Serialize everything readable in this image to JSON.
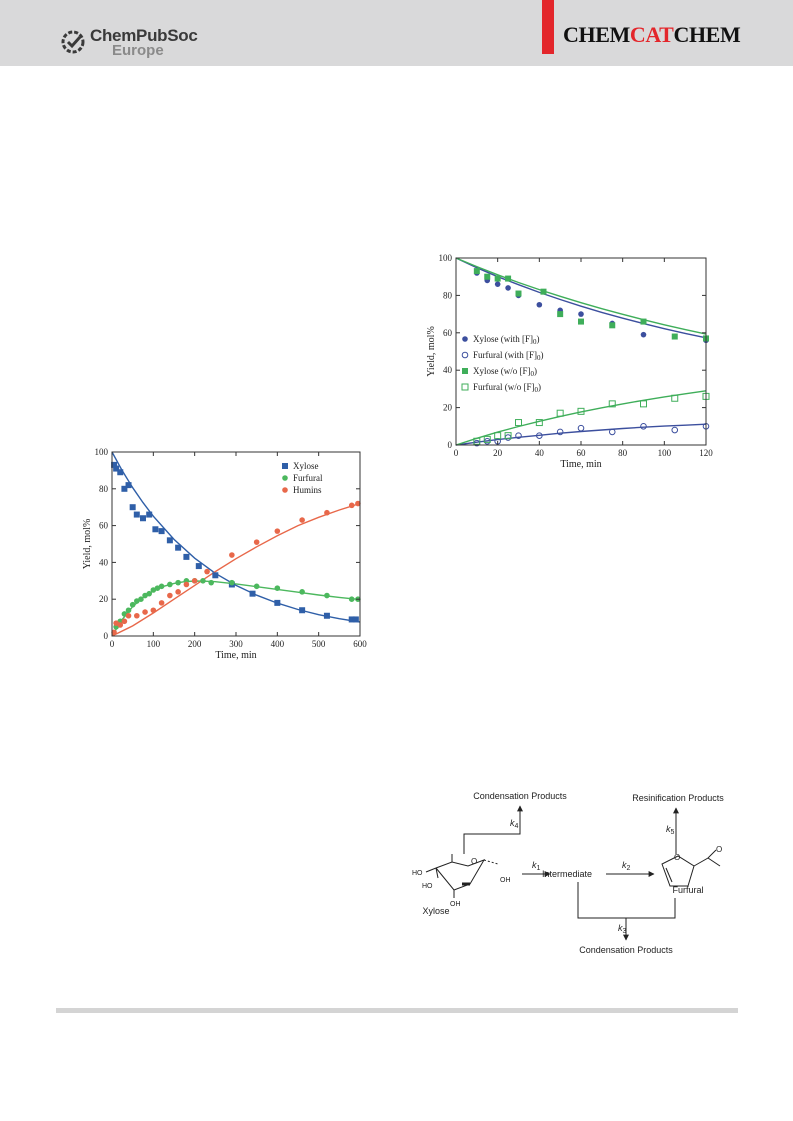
{
  "header": {
    "publisher_line1": "ChemPubSoc",
    "publisher_line2": "Europe",
    "journal_part1": "CHEM",
    "journal_part2": "CAT",
    "journal_part3": "CHEM"
  },
  "chart_data": [
    {
      "type": "scatter",
      "xlabel": "Time, min",
      "ylabel": "Yield, mol%",
      "xlim": [
        0,
        120
      ],
      "ylim": [
        0,
        100
      ],
      "xticks": [
        "0",
        "20",
        "40",
        "60",
        "80",
        "100",
        "120"
      ],
      "yticks": [
        "0",
        "20",
        "40",
        "60",
        "80",
        "100"
      ],
      "legend_placement": "center-left",
      "series": [
        {
          "name": "Xylose (with [F]0)",
          "legend_main": "Xylose (with [F]",
          "legend_sub": "0",
          "legend_tail": ")",
          "marker": "filled-circle",
          "color": "#3c4f9e",
          "x": [
            10,
            15,
            20,
            25,
            30,
            40,
            50,
            60,
            75,
            90,
            105,
            120
          ],
          "y": [
            92,
            88,
            86,
            84,
            80,
            75,
            72,
            70,
            65,
            59,
            58,
            56
          ]
        },
        {
          "name": "Furfural (with [F]0)",
          "legend_main": "Furfural (with [F]",
          "legend_sub": "0",
          "legend_tail": ")",
          "marker": "open-circle",
          "color": "#3c4f9e",
          "x": [
            10,
            15,
            20,
            25,
            30,
            40,
            50,
            60,
            75,
            90,
            105,
            120
          ],
          "y": [
            1,
            2,
            2,
            4,
            5,
            5,
            7,
            9,
            7,
            10,
            8,
            10
          ]
        },
        {
          "name": "Xylose (w/o [F]0)",
          "legend_main": "Xylose (w/o [F]",
          "legend_sub": "0",
          "legend_tail": ")",
          "marker": "filled-square",
          "color": "#3fae5a",
          "x": [
            10,
            15,
            20,
            25,
            30,
            42,
            50,
            60,
            75,
            90,
            105,
            120
          ],
          "y": [
            93,
            90,
            89,
            89,
            81,
            82,
            70,
            66,
            64,
            66,
            58,
            57
          ]
        },
        {
          "name": "Furfural (w/o [F]0)",
          "legend_main": "Furfural (w/o [F]",
          "legend_sub": "0",
          "legend_tail": ")",
          "marker": "open-square",
          "color": "#3fae5a",
          "x": [
            10,
            15,
            20,
            25,
            30,
            40,
            50,
            60,
            75,
            90,
            105,
            120
          ],
          "y": [
            2,
            3,
            5,
            5,
            12,
            12,
            17,
            18,
            22,
            22,
            25,
            26
          ]
        }
      ],
      "fits": [
        {
          "color": "#3c4f9e",
          "x": [
            0,
            10,
            20,
            30,
            40,
            50,
            60,
            70,
            80,
            90,
            100,
            110,
            120
          ],
          "y": [
            100,
            94.8,
            90,
            85.7,
            81.6,
            77.8,
            74.2,
            70.9,
            67.8,
            64.9,
            62.2,
            59.7,
            57.3
          ]
        },
        {
          "color": "#3c4f9e",
          "x": [
            0,
            10,
            20,
            30,
            40,
            50,
            60,
            70,
            80,
            90,
            100,
            110,
            120
          ],
          "y": [
            0,
            1.5,
            2.9,
            4.1,
            5.2,
            6.3,
            7.2,
            8,
            8.8,
            9.5,
            10.1,
            10.6,
            11.1
          ]
        },
        {
          "color": "#3fae5a",
          "x": [
            0,
            10,
            20,
            30,
            40,
            50,
            60,
            70,
            80,
            90,
            100,
            110,
            120
          ],
          "y": [
            100,
            95.4,
            91,
            86.9,
            83.1,
            79.5,
            76.1,
            72.9,
            69.9,
            67,
            64.3,
            61.7,
            59.3
          ]
        },
        {
          "color": "#3fae5a",
          "x": [
            0,
            10,
            20,
            30,
            40,
            50,
            60,
            70,
            80,
            90,
            100,
            110,
            120
          ],
          "y": [
            0,
            3.6,
            6.9,
            9.9,
            12.7,
            15.3,
            17.7,
            19.9,
            22,
            23.9,
            25.7,
            27.4,
            29
          ]
        }
      ]
    },
    {
      "type": "scatter",
      "xlabel": "Time, min",
      "ylabel": "Yield, mol%",
      "xlim": [
        0,
        600
      ],
      "ylim": [
        0,
        100
      ],
      "xticks": [
        "0",
        "100",
        "200",
        "300",
        "400",
        "500",
        "600"
      ],
      "yticks": [
        "0",
        "20",
        "40",
        "60",
        "80",
        "100"
      ],
      "legend_placement": "top-right",
      "series": [
        {
          "name": "Xylose",
          "legend_main": "Xylose",
          "marker": "filled-square",
          "color": "#2f5fa8",
          "x": [
            5,
            10,
            20,
            30,
            40,
            50,
            60,
            75,
            90,
            105,
            120,
            140,
            160,
            180,
            210,
            250,
            290,
            340,
            400,
            460,
            520,
            580,
            590
          ],
          "y": [
            93,
            91,
            89,
            80,
            82,
            70,
            66,
            64,
            66,
            58,
            57,
            52,
            48,
            43,
            38,
            33,
            28,
            23,
            18,
            14,
            11,
            9,
            9
          ]
        },
        {
          "name": "Furfural",
          "legend_main": "Furfural",
          "marker": "filled-circle",
          "color": "#4cb85e",
          "x": [
            10,
            20,
            30,
            40,
            50,
            60,
            70,
            80,
            90,
            100,
            110,
            120,
            140,
            160,
            180,
            200,
            220,
            240,
            290,
            350,
            400,
            460,
            520,
            580,
            595
          ],
          "y": [
            5,
            8,
            12,
            14,
            17,
            19,
            20,
            22,
            23,
            25,
            26,
            27,
            28,
            29,
            30,
            30,
            30,
            29,
            29,
            27,
            26,
            24,
            22,
            20,
            20
          ]
        },
        {
          "name": "Humins",
          "legend_main": "Humins",
          "marker": "filled-circle",
          "color": "#e8684a",
          "x": [
            5,
            10,
            20,
            30,
            40,
            60,
            80,
            100,
            120,
            140,
            160,
            180,
            200,
            230,
            290,
            350,
            400,
            460,
            520,
            580,
            595
          ],
          "y": [
            2,
            7,
            6,
            8,
            11,
            11,
            13,
            14,
            18,
            22,
            24,
            28,
            30,
            35,
            44,
            51,
            57,
            63,
            67,
            71,
            72
          ]
        }
      ],
      "fits": [
        {
          "color": "#2f5fa8",
          "x": [
            0,
            25,
            50,
            75,
            100,
            150,
            200,
            250,
            300,
            350,
            400,
            450,
            500,
            550,
            600
          ],
          "y": [
            100,
            89.8,
            80.6,
            72.5,
            65.1,
            52.5,
            42.3,
            34.1,
            27.5,
            22.2,
            17.9,
            14.4,
            11.6,
            9.4,
            7.6
          ]
        },
        {
          "color": "#4cb85e",
          "x": [
            0,
            25,
            50,
            75,
            100,
            125,
            150,
            175,
            200,
            225,
            250,
            300,
            350,
            400,
            450,
            500,
            550,
            600
          ],
          "y": [
            0,
            9,
            16,
            21,
            24.5,
            27,
            28.6,
            29.5,
            29.9,
            29.8,
            29.5,
            28.3,
            26.8,
            25.3,
            23.8,
            22.3,
            21,
            19.8
          ]
        },
        {
          "color": "#e8684a",
          "x": [
            0,
            50,
            100,
            150,
            200,
            250,
            300,
            350,
            400,
            450,
            500,
            550,
            600
          ],
          "y": [
            0,
            5.5,
            12.5,
            20,
            27.5,
            35,
            42,
            48.5,
            54.5,
            60,
            64.5,
            68.5,
            72
          ]
        }
      ]
    }
  ],
  "scheme": {
    "condensation_top": "Condensation Products",
    "resinification": "Resinification Products",
    "condensation_bottom": "Condensation Products",
    "intermediate": "Intermediate",
    "xylose": "Xylose",
    "furfural": "Furfural",
    "k1": "k",
    "k1_sub": "1",
    "k2": "k",
    "k2_sub": "2",
    "k3": "k",
    "k3_sub": "3",
    "k4": "k",
    "k4_sub": "4",
    "k5": "k",
    "k5_sub": "5",
    "ho_top": "HO",
    "ho_left": "HO",
    "oh_bottom": "OH",
    "oh_right": "OH",
    "ring_o": "O",
    "furan_o": "O",
    "aldehyde_o": "O"
  }
}
